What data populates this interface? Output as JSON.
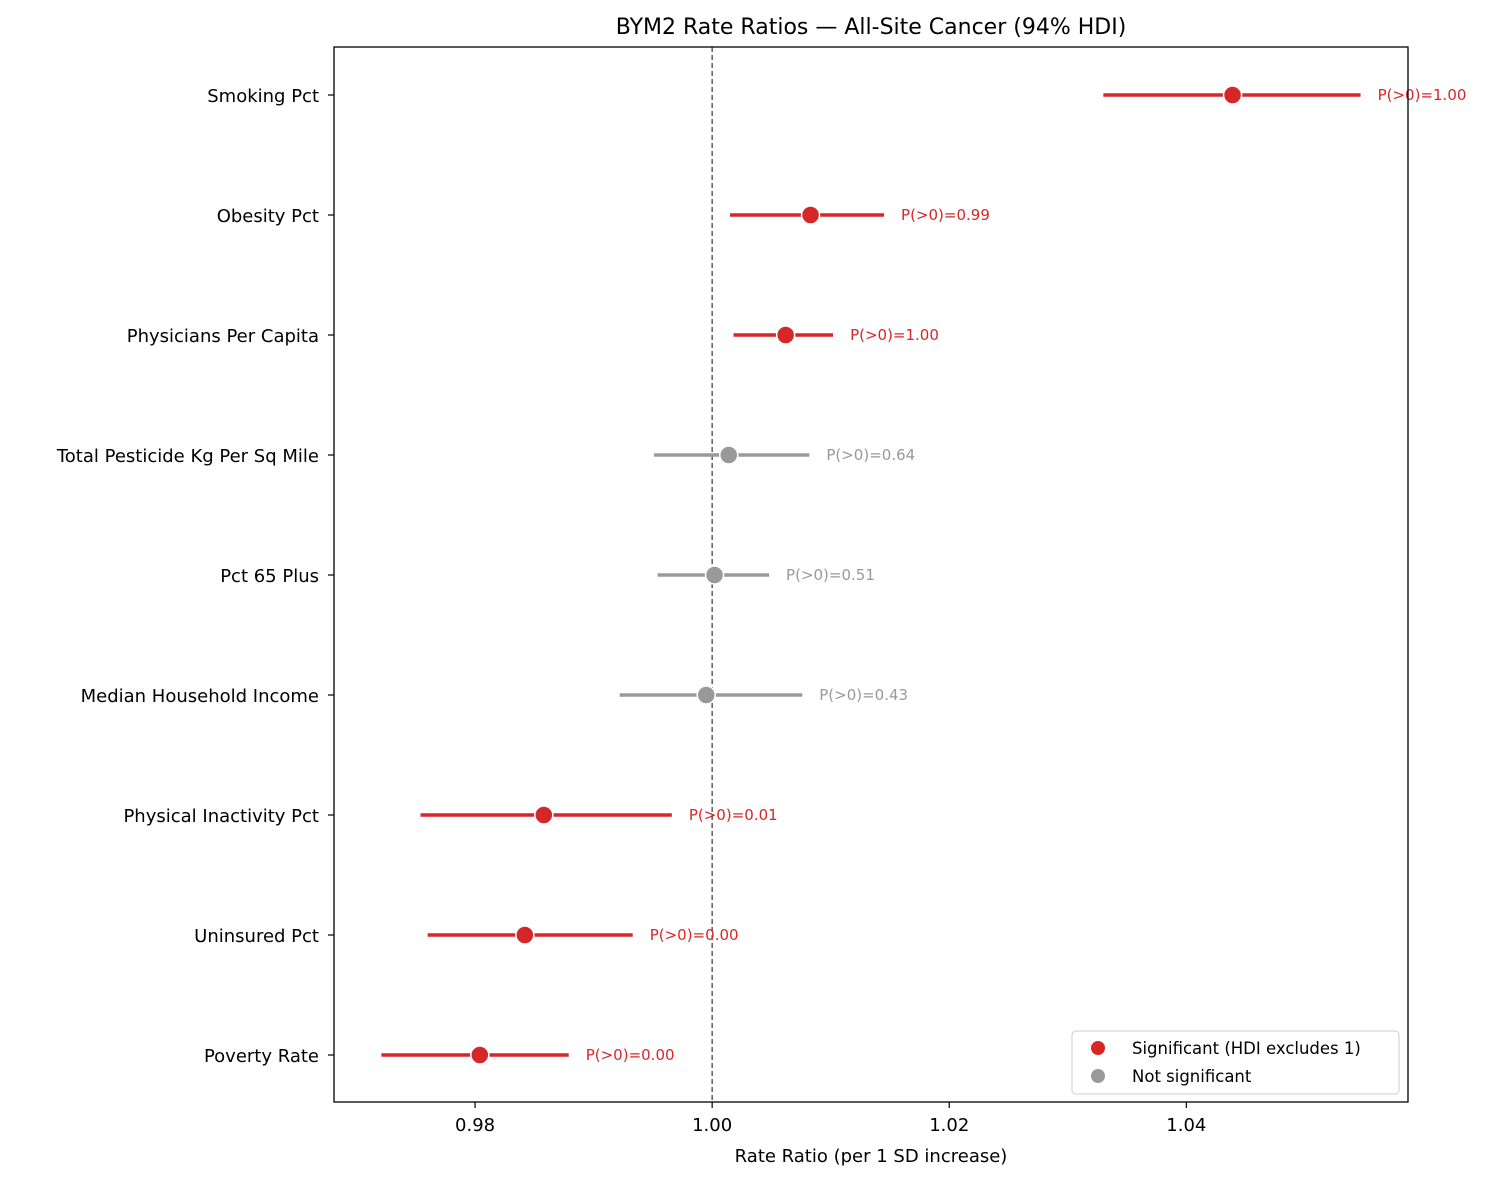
{
  "chart_data": {
    "type": "scatter",
    "subtype": "forest-plot",
    "title": "BYM2 Rate Ratios — All-Site Cancer (94% HDI)",
    "xlabel": "Rate Ratio (per 1 SD increase)",
    "ylabel": "",
    "xlim": [
      0.9681,
      1.0587
    ],
    "xticks": [
      "0.98",
      "1.00",
      "1.02",
      "1.04"
    ],
    "xtick_values": [
      0.98,
      1.0,
      1.02,
      1.04
    ],
    "reference_line": 1.0,
    "grid": false,
    "legend_placement": "lower-right",
    "colors": {
      "significant": "#d62728",
      "not_significant": "#999999"
    },
    "legend": [
      {
        "label": "Significant (HDI excludes 1)",
        "key": "significant"
      },
      {
        "label": "Not significant",
        "key": "not_significant"
      }
    ],
    "rows": [
      {
        "label": "Smoking Pct",
        "rr": 1.0439,
        "low": 1.033,
        "high": 1.0547,
        "significant": true,
        "annotation": "P(>0)=1.00"
      },
      {
        "label": "Obesity Pct",
        "rr": 1.0083,
        "low": 1.0015,
        "high": 1.0145,
        "significant": true,
        "annotation": "P(>0)=0.99"
      },
      {
        "label": "Physicians Per Capita",
        "rr": 1.0062,
        "low": 1.0018,
        "high": 1.0102,
        "significant": true,
        "annotation": "P(>0)=1.00"
      },
      {
        "label": "Total Pesticide Kg Per Sq Mile",
        "rr": 1.0014,
        "low": 0.9951,
        "high": 1.0082,
        "significant": false,
        "annotation": "P(>0)=0.64"
      },
      {
        "label": "Pct 65 Plus",
        "rr": 1.0002,
        "low": 0.9954,
        "high": 1.0048,
        "significant": false,
        "annotation": "P(>0)=0.51"
      },
      {
        "label": "Median Household Income",
        "rr": 0.9995,
        "low": 0.9922,
        "high": 1.0076,
        "significant": false,
        "annotation": "P(>0)=0.43"
      },
      {
        "label": "Physical Inactivity Pct",
        "rr": 0.9858,
        "low": 0.9754,
        "high": 0.9966,
        "significant": true,
        "annotation": "P(>0)=0.01"
      },
      {
        "label": "Uninsured Pct",
        "rr": 0.9842,
        "low": 0.976,
        "high": 0.9933,
        "significant": true,
        "annotation": "P(>0)=0.00"
      },
      {
        "label": "Poverty Rate",
        "rr": 0.9804,
        "low": 0.9721,
        "high": 0.9879,
        "significant": true,
        "annotation": "P(>0)=0.00"
      }
    ]
  }
}
